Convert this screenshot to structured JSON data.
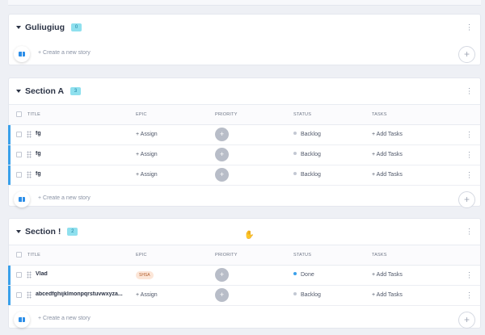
{
  "columns": {
    "title": "TITLE",
    "epic": "EPIC",
    "priority": "PRIORITY",
    "status": "STATUS",
    "tasks": "TASKS"
  },
  "create_story": "+ Create a new story",
  "sections": [
    {
      "title": "Guliugiug",
      "count": "0"
    },
    {
      "title": "Section A",
      "count": "3",
      "rows": [
        {
          "title": "fg",
          "epic": "+ Assign",
          "priority": "+",
          "status": "Backlog",
          "tasks": "+ Add Tasks"
        },
        {
          "title": "fg",
          "epic": "+ Assign",
          "priority": "+",
          "status": "Backlog",
          "tasks": "+ Add Tasks"
        },
        {
          "title": "fg",
          "epic": "+ Assign",
          "priority": "+",
          "status": "Backlog",
          "tasks": "+ Add Tasks"
        }
      ]
    },
    {
      "title": "Section !",
      "count": "2",
      "rows": [
        {
          "title": "Vlad",
          "epic": "SHSA",
          "priority": "+",
          "status": "Done",
          "tasks": "+ Add Tasks"
        },
        {
          "title": "abcedfghijklmonpqrstuvwxyza...",
          "epic": "+ Assign",
          "priority": "+",
          "status": "Backlog",
          "tasks": "+ Add Tasks"
        }
      ]
    }
  ],
  "colors": {
    "accent": "#3aa0ea",
    "backlog_dot": "#c3c8d3",
    "done_dot": "#3aa0ea",
    "badge": "#8fe0ee"
  },
  "icons": {
    "more": "kebab-icon",
    "add": "plus-icon",
    "story": "book-icon",
    "cursor": "hand-cursor-icon"
  }
}
